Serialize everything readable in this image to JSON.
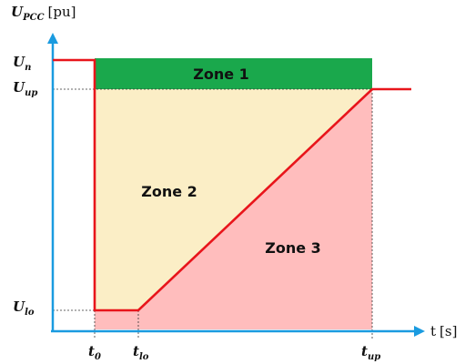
{
  "colors": {
    "zone1": "#1aa84c",
    "zone2": "#fbeec6",
    "zone3": "#ffbdbd",
    "curve": "#e8151b",
    "axis": "#1a9be0",
    "dashed": "#333333"
  },
  "axes": {
    "y_label_main": "U",
    "y_label_sub": "PCC",
    "y_label_unit": "[pu]",
    "x_label_main": "t",
    "x_label_unit": "[s]"
  },
  "y_ticks": {
    "un": {
      "main": "U",
      "sub": "n"
    },
    "uup": {
      "main": "U",
      "sub": "up"
    },
    "ulo": {
      "main": "U",
      "sub": "lo"
    }
  },
  "x_ticks": {
    "t0": {
      "main": "t",
      "sub": "0"
    },
    "tlo": {
      "main": "t",
      "sub": "lo"
    },
    "tup": {
      "main": "t",
      "sub": "up"
    }
  },
  "zones": {
    "zone1": "Zone 1",
    "zone2": "Zone 2",
    "zone3": "Zone 3"
  }
}
